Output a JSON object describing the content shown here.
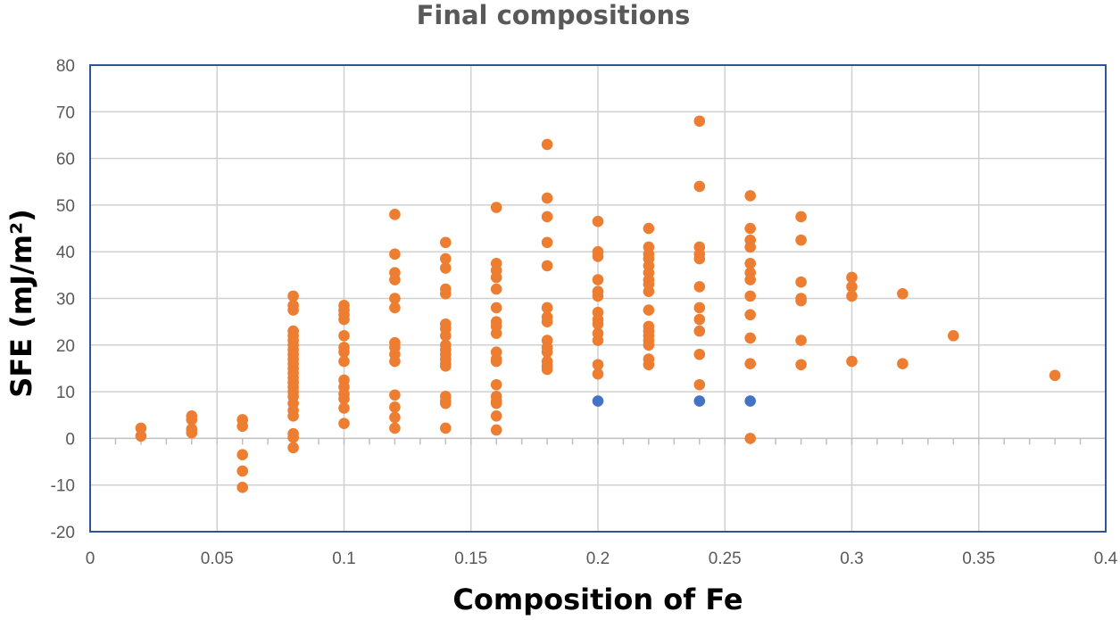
{
  "chart_data": {
    "type": "scatter",
    "title": "Final compositions",
    "xlabel": "Composition of Fe",
    "ylabel": "SFE (mJ/m²)",
    "xlim": [
      0,
      0.4
    ],
    "ylim": [
      -20,
      80
    ],
    "x_ticks": [
      "0",
      "0.05",
      "0.1",
      "0.15",
      "0.2",
      "0.25",
      "0.3",
      "0.35",
      "0.4"
    ],
    "y_ticks": [
      "-20",
      "-10",
      "0",
      "10",
      "20",
      "30",
      "40",
      "50",
      "60",
      "70",
      "80"
    ],
    "grid": true,
    "legend": "none",
    "series": [
      {
        "color": "#ed7d31",
        "points": [
          [
            0.02,
            2.2
          ],
          [
            0.02,
            0.5
          ],
          [
            0.04,
            4.8
          ],
          [
            0.04,
            4.0
          ],
          [
            0.04,
            2.0
          ],
          [
            0.04,
            1.2
          ],
          [
            0.06,
            4.0
          ],
          [
            0.06,
            2.6
          ],
          [
            0.06,
            -3.5
          ],
          [
            0.06,
            -7.0
          ],
          [
            0.06,
            -10.5
          ],
          [
            0.08,
            30.5
          ],
          [
            0.08,
            28.5
          ],
          [
            0.08,
            27.5
          ],
          [
            0.08,
            23.0
          ],
          [
            0.08,
            22.0
          ],
          [
            0.08,
            21.0
          ],
          [
            0.08,
            20.0
          ],
          [
            0.08,
            19.0
          ],
          [
            0.08,
            18.0
          ],
          [
            0.08,
            17.0
          ],
          [
            0.08,
            16.0
          ],
          [
            0.08,
            15.0
          ],
          [
            0.08,
            14.0
          ],
          [
            0.08,
            13.0
          ],
          [
            0.08,
            12.0
          ],
          [
            0.08,
            11.0
          ],
          [
            0.08,
            10.0
          ],
          [
            0.08,
            9.0
          ],
          [
            0.08,
            7.5
          ],
          [
            0.08,
            6.0
          ],
          [
            0.08,
            4.8
          ],
          [
            0.08,
            1.0
          ],
          [
            0.08,
            0.2
          ],
          [
            0.08,
            -2.0
          ],
          [
            0.1,
            28.5
          ],
          [
            0.1,
            27.5
          ],
          [
            0.1,
            26.5
          ],
          [
            0.1,
            25.5
          ],
          [
            0.1,
            22.0
          ],
          [
            0.1,
            19.5
          ],
          [
            0.1,
            18.5
          ],
          [
            0.1,
            16.5
          ],
          [
            0.1,
            12.5
          ],
          [
            0.1,
            11.0
          ],
          [
            0.1,
            9.5
          ],
          [
            0.1,
            8.5
          ],
          [
            0.1,
            6.5
          ],
          [
            0.1,
            3.2
          ],
          [
            0.12,
            48.0
          ],
          [
            0.12,
            39.5
          ],
          [
            0.12,
            35.5
          ],
          [
            0.12,
            34.0
          ],
          [
            0.12,
            30.0
          ],
          [
            0.12,
            28.0
          ],
          [
            0.12,
            20.5
          ],
          [
            0.12,
            19.5
          ],
          [
            0.12,
            18.0
          ],
          [
            0.12,
            16.5
          ],
          [
            0.12,
            9.3
          ],
          [
            0.12,
            6.7
          ],
          [
            0.12,
            4.5
          ],
          [
            0.12,
            2.2
          ],
          [
            0.14,
            42.0
          ],
          [
            0.14,
            38.5
          ],
          [
            0.14,
            36.5
          ],
          [
            0.14,
            32.0
          ],
          [
            0.14,
            31.0
          ],
          [
            0.14,
            24.5
          ],
          [
            0.14,
            23.5
          ],
          [
            0.14,
            22.0
          ],
          [
            0.14,
            20.0
          ],
          [
            0.14,
            19.0
          ],
          [
            0.14,
            18.0
          ],
          [
            0.14,
            17.0
          ],
          [
            0.14,
            16.0
          ],
          [
            0.14,
            15.5
          ],
          [
            0.14,
            9.0
          ],
          [
            0.14,
            8.0
          ],
          [
            0.14,
            7.5
          ],
          [
            0.14,
            2.2
          ],
          [
            0.16,
            49.5
          ],
          [
            0.16,
            37.5
          ],
          [
            0.16,
            36.0
          ],
          [
            0.16,
            34.5
          ],
          [
            0.16,
            32.0
          ],
          [
            0.16,
            28.0
          ],
          [
            0.16,
            25.0
          ],
          [
            0.16,
            24.0
          ],
          [
            0.16,
            22.5
          ],
          [
            0.16,
            18.5
          ],
          [
            0.16,
            17.0
          ],
          [
            0.16,
            16.5
          ],
          [
            0.16,
            11.5
          ],
          [
            0.16,
            9.0
          ],
          [
            0.16,
            8.0
          ],
          [
            0.16,
            7.5
          ],
          [
            0.16,
            4.8
          ],
          [
            0.16,
            1.8
          ],
          [
            0.18,
            63.0
          ],
          [
            0.18,
            51.5
          ],
          [
            0.18,
            47.5
          ],
          [
            0.18,
            42.0
          ],
          [
            0.18,
            37.0
          ],
          [
            0.18,
            28.0
          ],
          [
            0.18,
            26.0
          ],
          [
            0.18,
            25.0
          ],
          [
            0.18,
            21.0
          ],
          [
            0.18,
            19.5
          ],
          [
            0.18,
            18.5
          ],
          [
            0.18,
            16.5
          ],
          [
            0.18,
            15.5
          ],
          [
            0.18,
            14.8
          ],
          [
            0.2,
            46.5
          ],
          [
            0.2,
            40.0
          ],
          [
            0.2,
            39.0
          ],
          [
            0.2,
            34.0
          ],
          [
            0.2,
            31.5
          ],
          [
            0.2,
            30.5
          ],
          [
            0.2,
            27.0
          ],
          [
            0.2,
            25.5
          ],
          [
            0.2,
            24.5
          ],
          [
            0.2,
            22.5
          ],
          [
            0.2,
            21.0
          ],
          [
            0.2,
            15.8
          ],
          [
            0.2,
            13.8
          ],
          [
            0.22,
            45.0
          ],
          [
            0.22,
            41.0
          ],
          [
            0.22,
            39.5
          ],
          [
            0.22,
            38.5
          ],
          [
            0.22,
            37.0
          ],
          [
            0.22,
            35.5
          ],
          [
            0.22,
            34.0
          ],
          [
            0.22,
            33.0
          ],
          [
            0.22,
            31.5
          ],
          [
            0.22,
            27.5
          ],
          [
            0.22,
            24.0
          ],
          [
            0.22,
            23.0
          ],
          [
            0.22,
            22.0
          ],
          [
            0.22,
            21.0
          ],
          [
            0.22,
            20.0
          ],
          [
            0.22,
            17.0
          ],
          [
            0.22,
            15.8
          ],
          [
            0.24,
            68.0
          ],
          [
            0.24,
            54.0
          ],
          [
            0.24,
            41.0
          ],
          [
            0.24,
            39.5
          ],
          [
            0.24,
            38.5
          ],
          [
            0.24,
            32.5
          ],
          [
            0.24,
            28.0
          ],
          [
            0.24,
            25.5
          ],
          [
            0.24,
            23.0
          ],
          [
            0.24,
            18.0
          ],
          [
            0.24,
            11.5
          ],
          [
            0.26,
            52.0
          ],
          [
            0.26,
            45.0
          ],
          [
            0.26,
            42.5
          ],
          [
            0.26,
            41.0
          ],
          [
            0.26,
            37.5
          ],
          [
            0.26,
            35.5
          ],
          [
            0.26,
            34.0
          ],
          [
            0.26,
            30.5
          ],
          [
            0.26,
            26.5
          ],
          [
            0.26,
            21.5
          ],
          [
            0.26,
            16.0
          ],
          [
            0.26,
            0.0
          ],
          [
            0.28,
            47.5
          ],
          [
            0.28,
            42.5
          ],
          [
            0.28,
            33.5
          ],
          [
            0.28,
            30.0
          ],
          [
            0.28,
            29.5
          ],
          [
            0.28,
            21.0
          ],
          [
            0.28,
            15.8
          ],
          [
            0.3,
            34.5
          ],
          [
            0.3,
            32.5
          ],
          [
            0.3,
            30.5
          ],
          [
            0.3,
            16.5
          ],
          [
            0.32,
            31.0
          ],
          [
            0.32,
            16.0
          ],
          [
            0.34,
            22.0
          ],
          [
            0.38,
            13.5
          ]
        ]
      },
      {
        "color": "#4472c4",
        "points": [
          [
            0.2,
            8.0
          ],
          [
            0.24,
            8.0
          ],
          [
            0.26,
            8.0
          ]
        ]
      }
    ]
  }
}
